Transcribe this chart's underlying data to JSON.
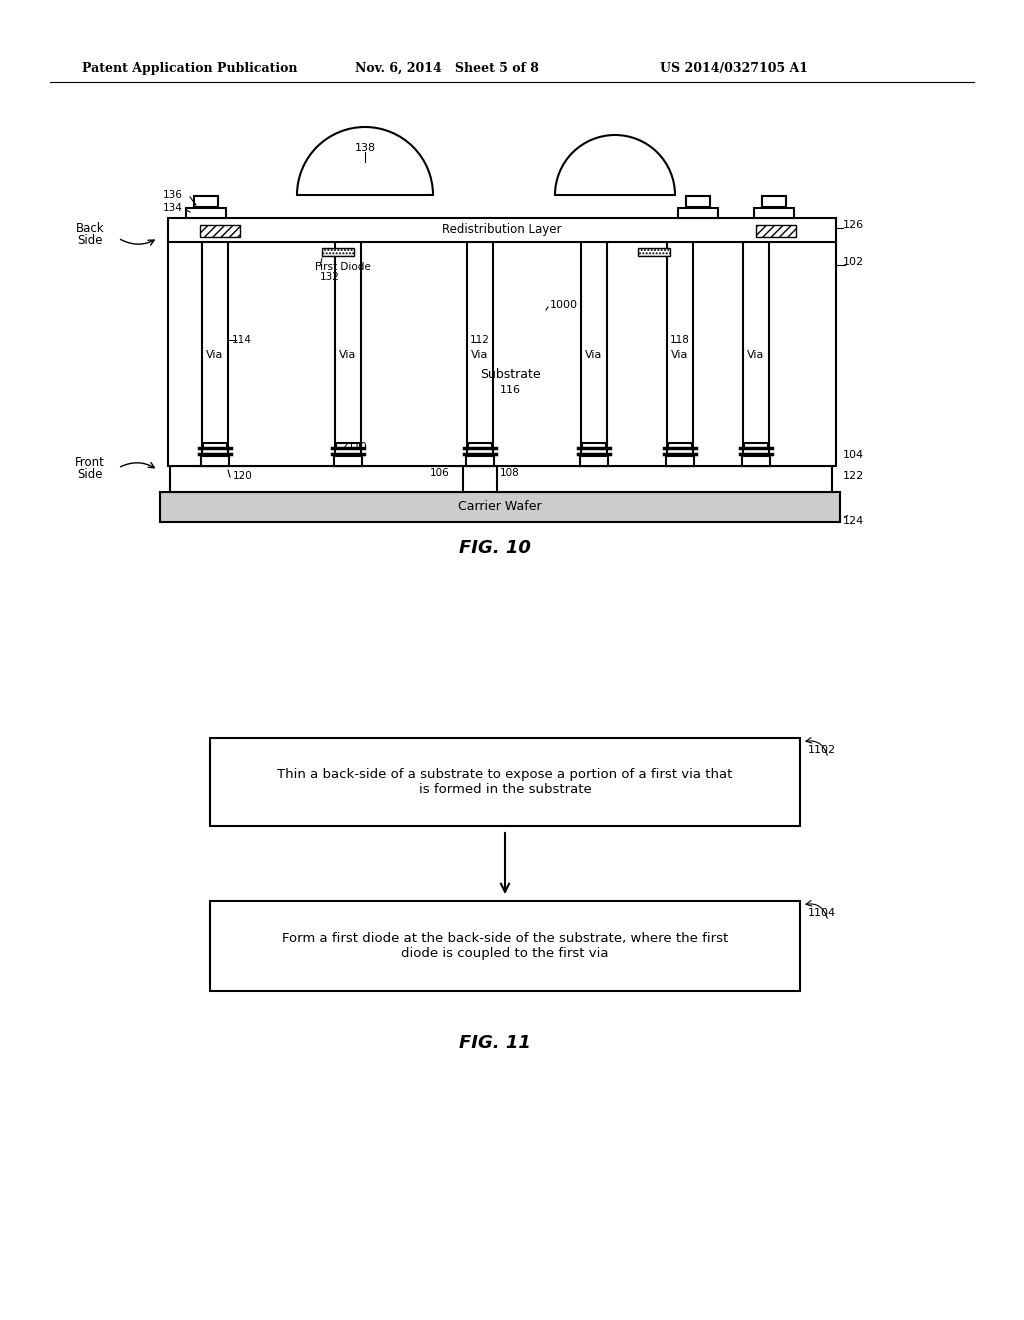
{
  "bg_color": "#ffffff",
  "header_left": "Patent Application Publication",
  "header_mid": "Nov. 6, 2014   Sheet 5 of 8",
  "header_right": "US 2014/0327105 A1",
  "fig10_caption": "FIG. 10",
  "fig11_caption": "FIG. 11",
  "box1_text": "Thin a back-side of a substrate to expose a portion of a first via that\nis formed in the substrate",
  "box2_text": "Form a first diode at the back-side of the substrate, where the first\ndiode is coupled to the first via",
  "label_1102": "1102",
  "label_1104": "1104"
}
